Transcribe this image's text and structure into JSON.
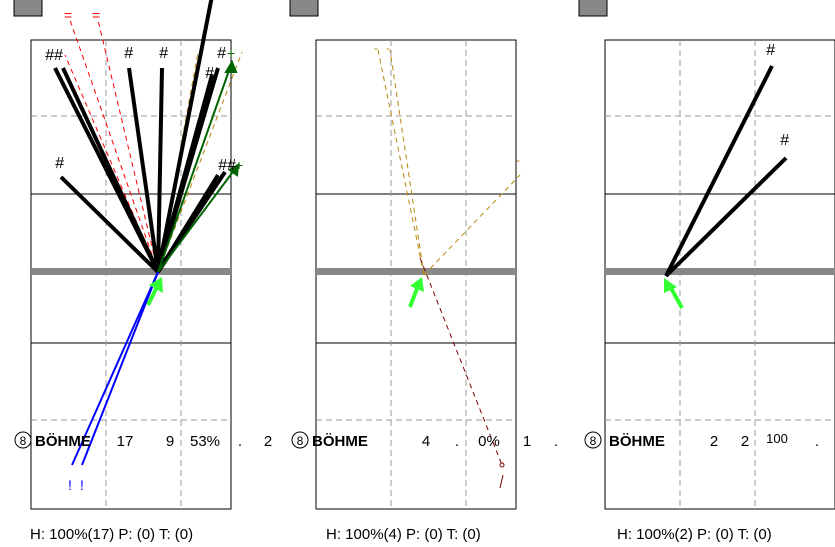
{
  "panels": [
    {
      "badge": "8",
      "player": "BÖHME",
      "stats": [
        "17",
        "9",
        "53%",
        ".",
        "2"
      ],
      "footer": "H: 100%(17)  P: (0)  T: (0)"
    },
    {
      "badge": "8",
      "player": "BÖHME",
      "stats": [
        "4",
        ".",
        "0%",
        "1",
        "."
      ],
      "footer": "H: 100%(4)  P: (0)  T: (0)"
    },
    {
      "badge": "8",
      "player": "BÖHME",
      "stats": [
        "2",
        "2",
        "100",
        "."
      ],
      "footer": "H: 100%(2)  P: (0)  T: (0)"
    }
  ],
  "markers": {
    "hash": "#",
    "double_hash": "##",
    "error": "=",
    "point": "!",
    "plus": "+",
    "dash": "-"
  },
  "colors": {
    "attack": "#000000",
    "error": "#ff0000",
    "blocked": "#0000ff",
    "in_play": "#b8860b",
    "kill_arrow": "#006400",
    "receive_arrow": "#33ff33",
    "out": "#800000",
    "net": "#888888",
    "grid_dash": "#999999"
  }
}
